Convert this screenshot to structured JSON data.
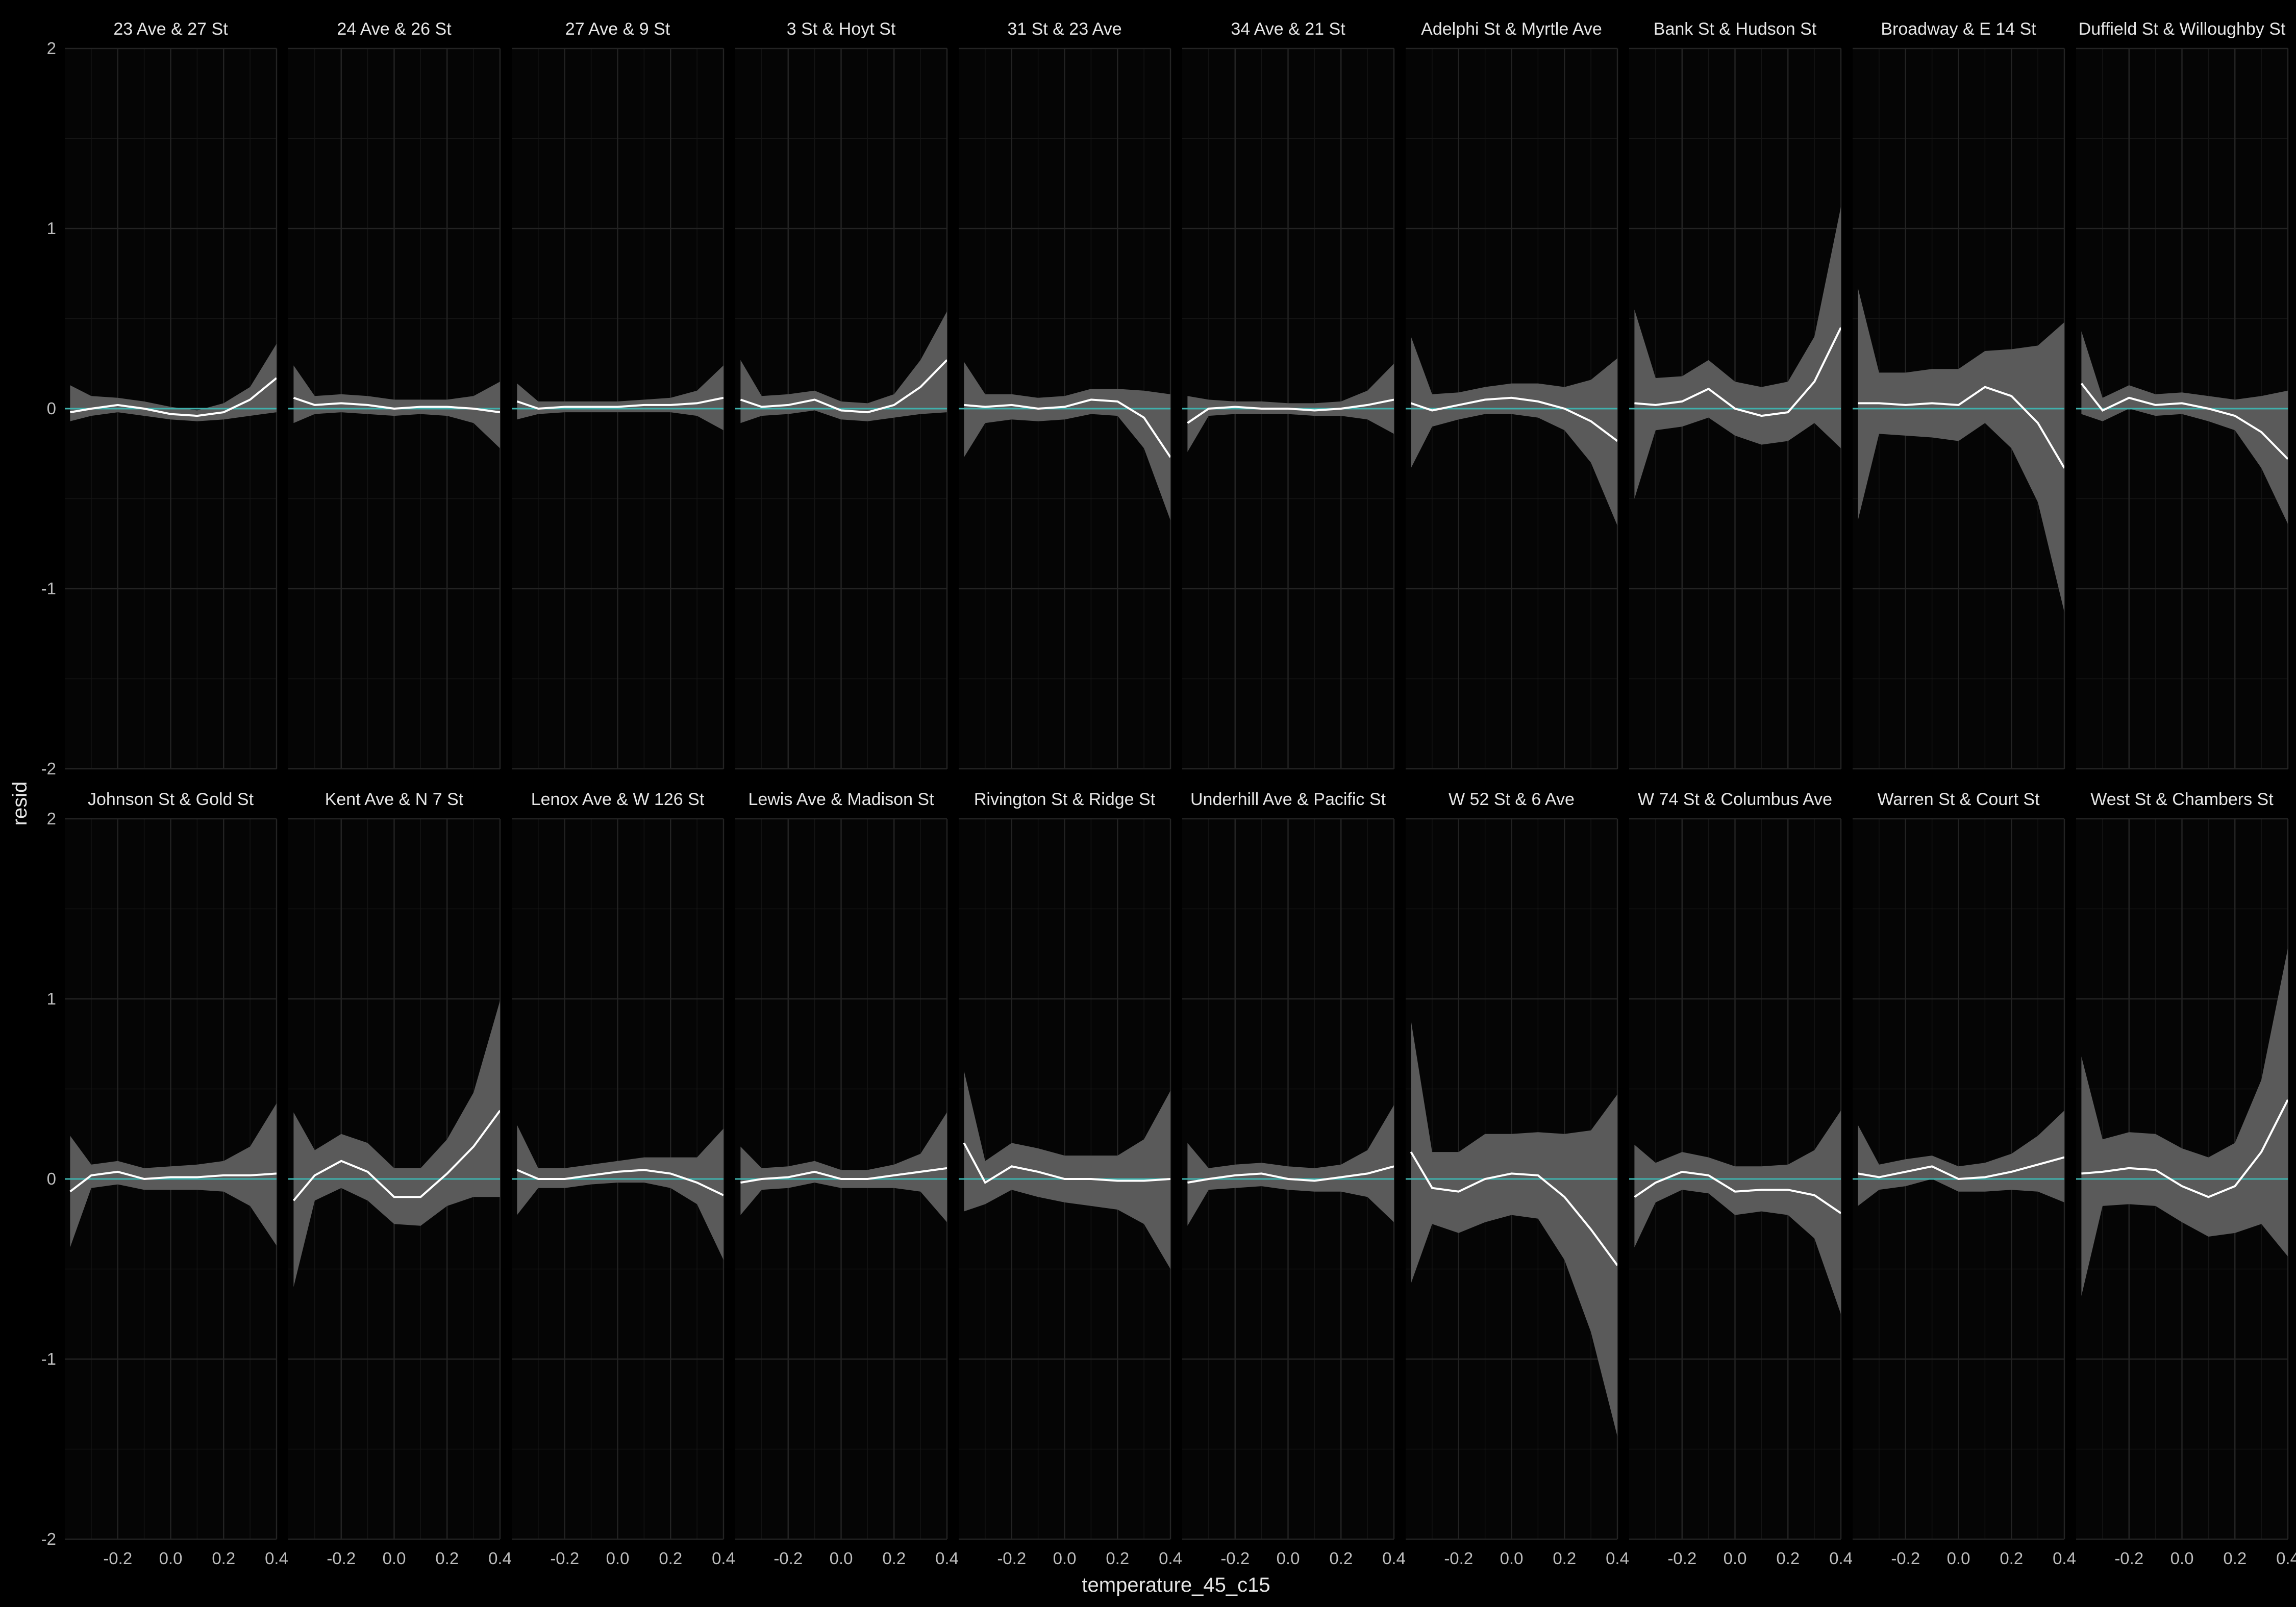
{
  "chart_data": {
    "type": "line",
    "facet_layout": "2 rows x 10 columns, shared axes",
    "xlabel": "temperature_45_c15",
    "ylabel": "resid",
    "xlim": [
      -0.4,
      0.4
    ],
    "ylim": [
      -2,
      2
    ],
    "x_ticks": [
      -0.2,
      0.0,
      0.2,
      0.4
    ],
    "x_tick_labels": [
      "-0.2",
      "0.0",
      "0.2",
      "0.4"
    ],
    "y_ticks": [
      -2,
      -1,
      0,
      1,
      2
    ],
    "y_tick_labels": [
      "-2",
      "-1",
      "0",
      "1",
      "2"
    ],
    "reference_line_y": 0,
    "colors": {
      "background": "#000000",
      "smooth": "#ffffff",
      "ribbon": "#5a5a5a",
      "reference": "#3fb0ac"
    },
    "x": [
      -0.38,
      -0.3,
      -0.2,
      -0.1,
      0.0,
      0.1,
      0.2,
      0.3,
      0.4
    ],
    "panels": [
      {
        "title": "23 Ave & 27 St",
        "fit": [
          -0.02,
          0.0,
          0.02,
          0.0,
          -0.03,
          -0.04,
          -0.02,
          0.05,
          0.17
        ],
        "lower": [
          -0.07,
          -0.04,
          -0.02,
          -0.04,
          -0.06,
          -0.07,
          -0.06,
          -0.04,
          -0.02
        ],
        "upper": [
          0.13,
          0.07,
          0.06,
          0.04,
          0.01,
          -0.01,
          0.03,
          0.12,
          0.36
        ]
      },
      {
        "title": "24 Ave & 26 St",
        "fit": [
          0.06,
          0.02,
          0.03,
          0.02,
          0.0,
          0.01,
          0.01,
          0.0,
          -0.02
        ],
        "lower": [
          -0.08,
          -0.03,
          -0.02,
          -0.03,
          -0.04,
          -0.03,
          -0.04,
          -0.08,
          -0.22
        ],
        "upper": [
          0.24,
          0.07,
          0.08,
          0.07,
          0.05,
          0.05,
          0.05,
          0.07,
          0.15
        ]
      },
      {
        "title": "27 Ave & 9 St",
        "fit": [
          0.04,
          0.0,
          0.01,
          0.01,
          0.01,
          0.02,
          0.02,
          0.03,
          0.06
        ],
        "lower": [
          -0.06,
          -0.03,
          -0.02,
          -0.02,
          -0.02,
          -0.02,
          -0.02,
          -0.04,
          -0.12
        ],
        "upper": [
          0.14,
          0.04,
          0.04,
          0.04,
          0.04,
          0.05,
          0.06,
          0.1,
          0.24
        ]
      },
      {
        "title": "3 St & Hoyt St",
        "fit": [
          0.05,
          0.01,
          0.02,
          0.05,
          -0.01,
          -0.02,
          0.02,
          0.12,
          0.27
        ],
        "lower": [
          -0.08,
          -0.04,
          -0.03,
          -0.01,
          -0.06,
          -0.07,
          -0.05,
          -0.03,
          -0.02
        ],
        "upper": [
          0.27,
          0.07,
          0.08,
          0.1,
          0.04,
          0.03,
          0.08,
          0.27,
          0.54
        ]
      },
      {
        "title": "31 St & 23 Ave",
        "fit": [
          0.02,
          0.01,
          0.02,
          0.0,
          0.01,
          0.05,
          0.04,
          -0.05,
          -0.27
        ],
        "lower": [
          -0.27,
          -0.08,
          -0.06,
          -0.07,
          -0.06,
          -0.03,
          -0.04,
          -0.22,
          -0.62
        ],
        "upper": [
          0.26,
          0.08,
          0.08,
          0.06,
          0.07,
          0.11,
          0.11,
          0.1,
          0.08
        ]
      },
      {
        "title": "34 Ave & 21 St",
        "fit": [
          -0.08,
          0.0,
          0.01,
          0.0,
          0.0,
          -0.01,
          0.0,
          0.02,
          0.05
        ],
        "lower": [
          -0.24,
          -0.04,
          -0.03,
          -0.03,
          -0.03,
          -0.04,
          -0.04,
          -0.06,
          -0.14
        ],
        "upper": [
          0.07,
          0.05,
          0.04,
          0.04,
          0.03,
          0.03,
          0.04,
          0.1,
          0.25
        ]
      },
      {
        "title": "Adelphi St & Myrtle Ave",
        "fit": [
          0.03,
          -0.01,
          0.02,
          0.05,
          0.06,
          0.04,
          0.0,
          -0.07,
          -0.18
        ],
        "lower": [
          -0.33,
          -0.1,
          -0.06,
          -0.03,
          -0.03,
          -0.05,
          -0.12,
          -0.3,
          -0.65
        ],
        "upper": [
          0.4,
          0.08,
          0.09,
          0.12,
          0.14,
          0.14,
          0.12,
          0.16,
          0.28
        ]
      },
      {
        "title": "Bank St & Hudson St",
        "fit": [
          0.03,
          0.02,
          0.04,
          0.11,
          0.0,
          -0.04,
          -0.02,
          0.15,
          0.45
        ],
        "lower": [
          -0.5,
          -0.12,
          -0.1,
          -0.05,
          -0.15,
          -0.2,
          -0.18,
          -0.08,
          -0.22
        ],
        "upper": [
          0.55,
          0.17,
          0.18,
          0.27,
          0.15,
          0.12,
          0.15,
          0.4,
          1.12
        ]
      },
      {
        "title": "Broadway & E 14 St",
        "fit": [
          0.03,
          0.03,
          0.02,
          0.03,
          0.02,
          0.12,
          0.07,
          -0.08,
          -0.33
        ],
        "lower": [
          -0.62,
          -0.14,
          -0.15,
          -0.16,
          -0.18,
          -0.08,
          -0.22,
          -0.52,
          -1.13
        ],
        "upper": [
          0.67,
          0.2,
          0.2,
          0.22,
          0.22,
          0.32,
          0.33,
          0.35,
          0.48
        ]
      },
      {
        "title": "Duffield St & Willoughby St",
        "fit": [
          0.14,
          -0.01,
          0.06,
          0.02,
          0.03,
          0.0,
          -0.04,
          -0.13,
          -0.28
        ],
        "lower": [
          -0.03,
          -0.07,
          0.0,
          -0.04,
          -0.03,
          -0.07,
          -0.12,
          -0.33,
          -0.64
        ],
        "upper": [
          0.43,
          0.06,
          0.13,
          0.08,
          0.09,
          0.07,
          0.05,
          0.07,
          0.1
        ]
      },
      {
        "title": "Johnson St & Gold St",
        "fit": [
          -0.07,
          0.02,
          0.04,
          0.0,
          0.01,
          0.01,
          0.02,
          0.02,
          0.03
        ],
        "lower": [
          -0.38,
          -0.05,
          -0.03,
          -0.06,
          -0.06,
          -0.06,
          -0.07,
          -0.15,
          -0.37
        ],
        "upper": [
          0.24,
          0.08,
          0.1,
          0.06,
          0.07,
          0.08,
          0.1,
          0.18,
          0.42
        ]
      },
      {
        "title": "Kent Ave & N 7 St",
        "fit": [
          -0.12,
          0.02,
          0.1,
          0.04,
          -0.1,
          -0.1,
          0.03,
          0.18,
          0.38
        ],
        "lower": [
          -0.6,
          -0.12,
          -0.05,
          -0.12,
          -0.25,
          -0.26,
          -0.15,
          -0.1,
          -0.1
        ],
        "upper": [
          0.37,
          0.16,
          0.25,
          0.2,
          0.06,
          0.06,
          0.22,
          0.48,
          0.99
        ]
      },
      {
        "title": "Lenox Ave & W 126 St",
        "fit": [
          0.05,
          0.0,
          0.0,
          0.02,
          0.04,
          0.05,
          0.03,
          -0.02,
          -0.09
        ],
        "lower": [
          -0.2,
          -0.05,
          -0.05,
          -0.03,
          -0.02,
          -0.02,
          -0.05,
          -0.14,
          -0.45
        ],
        "upper": [
          0.3,
          0.06,
          0.06,
          0.08,
          0.1,
          0.12,
          0.12,
          0.12,
          0.28
        ]
      },
      {
        "title": "Lewis Ave & Madison St",
        "fit": [
          -0.02,
          0.0,
          0.01,
          0.04,
          0.0,
          0.0,
          0.02,
          0.04,
          0.06
        ],
        "lower": [
          -0.2,
          -0.06,
          -0.05,
          -0.02,
          -0.05,
          -0.05,
          -0.05,
          -0.07,
          -0.24
        ],
        "upper": [
          0.18,
          0.06,
          0.07,
          0.1,
          0.05,
          0.05,
          0.08,
          0.14,
          0.37
        ]
      },
      {
        "title": "Rivington St & Ridge St",
        "fit": [
          0.2,
          -0.02,
          0.07,
          0.04,
          0.0,
          0.0,
          -0.01,
          -0.01,
          0.0
        ],
        "lower": [
          -0.18,
          -0.14,
          -0.06,
          -0.1,
          -0.13,
          -0.15,
          -0.17,
          -0.25,
          -0.5
        ],
        "upper": [
          0.6,
          0.1,
          0.2,
          0.17,
          0.13,
          0.13,
          0.13,
          0.22,
          0.49
        ]
      },
      {
        "title": "Underhill Ave & Pacific St",
        "fit": [
          -0.02,
          0.0,
          0.02,
          0.03,
          0.0,
          -0.01,
          0.01,
          0.03,
          0.07
        ],
        "lower": [
          -0.26,
          -0.06,
          -0.05,
          -0.04,
          -0.06,
          -0.07,
          -0.07,
          -0.1,
          -0.24
        ],
        "upper": [
          0.2,
          0.06,
          0.08,
          0.09,
          0.07,
          0.06,
          0.08,
          0.16,
          0.41
        ]
      },
      {
        "title": "W 52 St & 6 Ave",
        "fit": [
          0.15,
          -0.05,
          -0.07,
          0.0,
          0.03,
          0.02,
          -0.1,
          -0.28,
          -0.48
        ],
        "lower": [
          -0.58,
          -0.25,
          -0.3,
          -0.24,
          -0.2,
          -0.22,
          -0.45,
          -0.85,
          -1.43
        ],
        "upper": [
          0.88,
          0.15,
          0.15,
          0.25,
          0.25,
          0.26,
          0.25,
          0.27,
          0.47
        ]
      },
      {
        "title": "W 74 St & Columbus Ave",
        "fit": [
          -0.1,
          -0.02,
          0.04,
          0.02,
          -0.07,
          -0.06,
          -0.06,
          -0.09,
          -0.19
        ],
        "lower": [
          -0.38,
          -0.13,
          -0.06,
          -0.08,
          -0.2,
          -0.18,
          -0.2,
          -0.33,
          -0.75
        ],
        "upper": [
          0.19,
          0.09,
          0.15,
          0.12,
          0.07,
          0.07,
          0.08,
          0.16,
          0.38
        ]
      },
      {
        "title": "Warren St & Court St",
        "fit": [
          0.03,
          0.01,
          0.04,
          0.07,
          0.0,
          0.01,
          0.04,
          0.08,
          0.12
        ],
        "lower": [
          -0.15,
          -0.06,
          -0.04,
          0.0,
          -0.07,
          -0.07,
          -0.06,
          -0.07,
          -0.13
        ],
        "upper": [
          0.3,
          0.08,
          0.11,
          0.13,
          0.07,
          0.09,
          0.14,
          0.24,
          0.38
        ]
      },
      {
        "title": "West St & Chambers St",
        "fit": [
          0.03,
          0.04,
          0.06,
          0.05,
          -0.04,
          -0.1,
          -0.04,
          0.15,
          0.44
        ],
        "lower": [
          -0.65,
          -0.15,
          -0.14,
          -0.15,
          -0.24,
          -0.32,
          -0.3,
          -0.25,
          -0.43
        ],
        "upper": [
          0.68,
          0.22,
          0.26,
          0.25,
          0.17,
          0.12,
          0.2,
          0.55,
          1.28
        ]
      }
    ]
  }
}
